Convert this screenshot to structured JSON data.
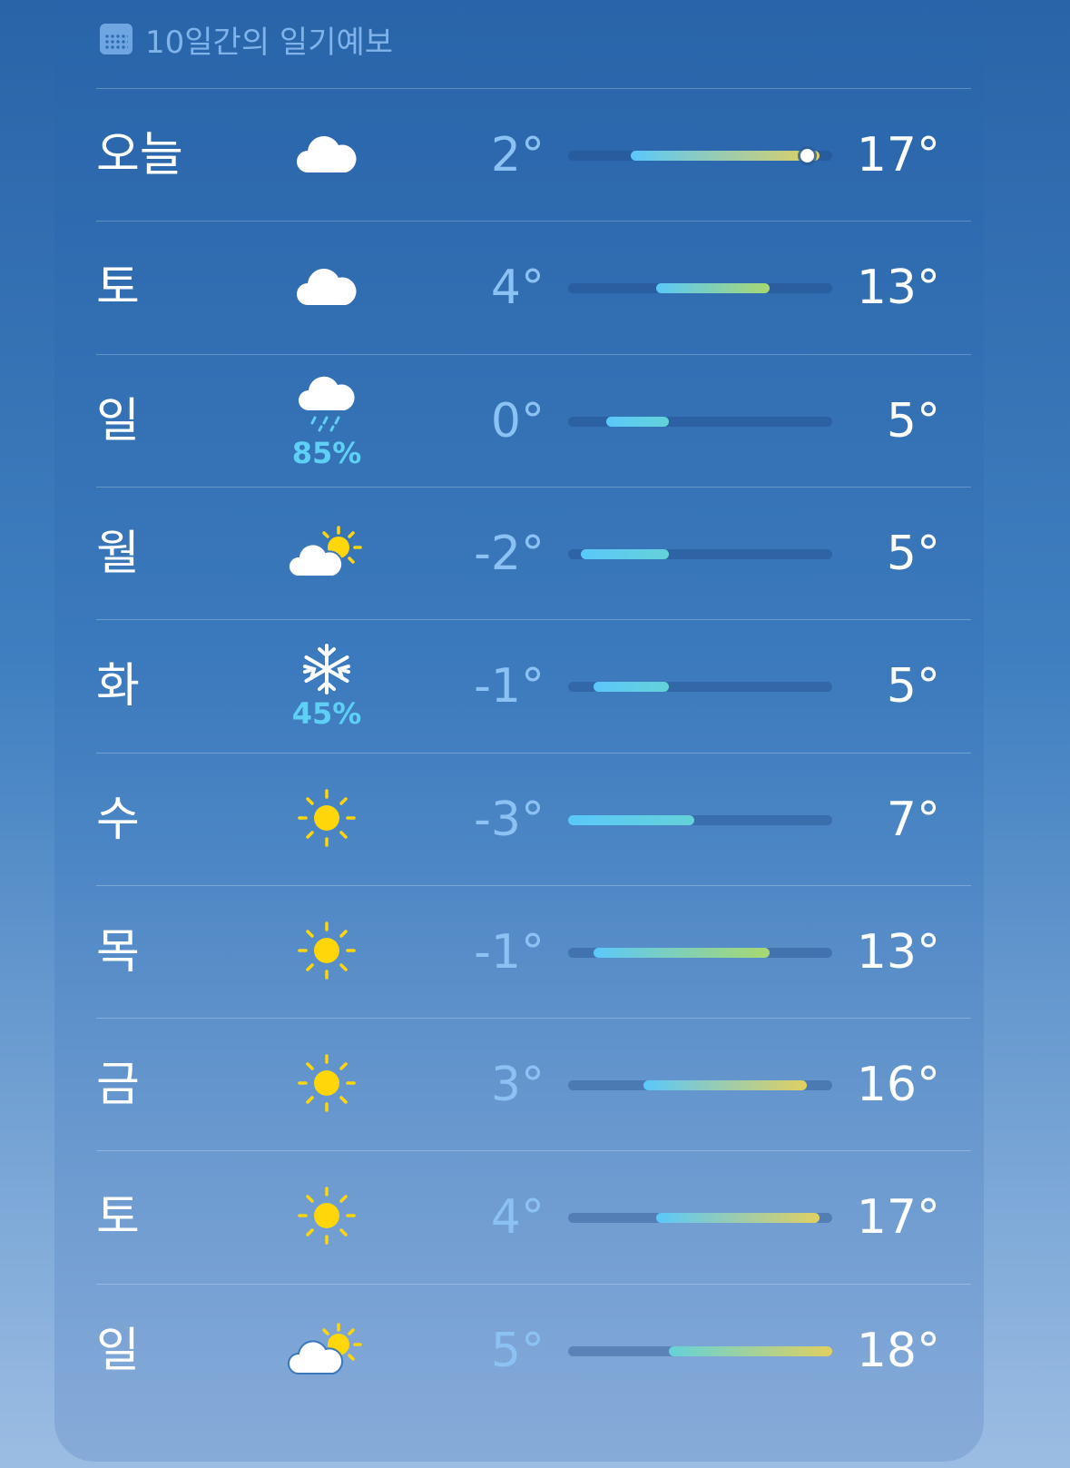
{
  "header": {
    "title": "10일간의 일기예보",
    "icon": "calendar-icon"
  },
  "range": {
    "min": -3,
    "max": 18
  },
  "colors": {
    "cold": "#5ac8fa",
    "cool": "#64d2d8",
    "warm": "#a8d870",
    "hot": "#e0d060",
    "precip": "#5fd0f5"
  },
  "days": [
    {
      "day": "오늘",
      "icon": "cloud",
      "low": "2°",
      "high": "17°",
      "lo": 2,
      "hi": 17,
      "current": 16
    },
    {
      "day": "토",
      "icon": "cloud",
      "low": "4°",
      "high": "13°",
      "lo": 4,
      "hi": 13
    },
    {
      "day": "일",
      "icon": "cloud-rain",
      "precip": "85%",
      "low": "0°",
      "high": "5°",
      "lo": 0,
      "hi": 5
    },
    {
      "day": "월",
      "icon": "cloud-sun",
      "low": "-2°",
      "high": "5°",
      "lo": -2,
      "hi": 5
    },
    {
      "day": "화",
      "icon": "snowflake",
      "precip": "45%",
      "low": "-1°",
      "high": "5°",
      "lo": -1,
      "hi": 5
    },
    {
      "day": "수",
      "icon": "sun",
      "low": "-3°",
      "high": "7°",
      "lo": -3,
      "hi": 7
    },
    {
      "day": "목",
      "icon": "sun",
      "low": "-1°",
      "high": "13°",
      "lo": -1,
      "hi": 13
    },
    {
      "day": "금",
      "icon": "sun",
      "low": "3°",
      "high": "16°",
      "lo": 3,
      "hi": 16
    },
    {
      "day": "토",
      "icon": "sun",
      "low": "4°",
      "high": "17°",
      "lo": 4,
      "hi": 17
    },
    {
      "day": "일",
      "icon": "cloud-sun",
      "low": "5°",
      "high": "18°",
      "lo": 5,
      "hi": 18
    }
  ]
}
